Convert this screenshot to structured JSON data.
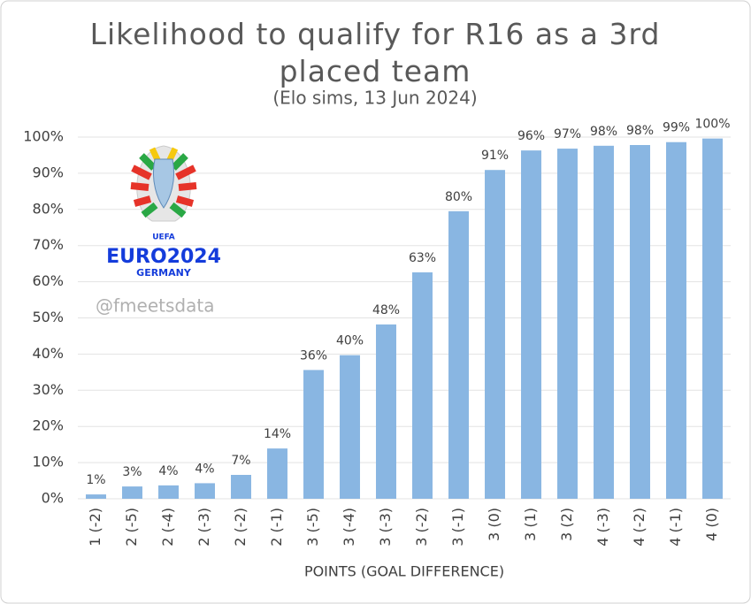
{
  "chart_data": {
    "type": "bar",
    "title": "Likelihood to qualify for R16 as a 3rd placed team",
    "subtitle": "(Elo sims, 13 Jun 2024)",
    "x_label": "POINTS (GOAL DIFFERENCE)",
    "watermark": "@fmeetsdata",
    "logo": {
      "top": "UEFA",
      "main": "EURO2024",
      "bottom": "GERMANY"
    },
    "categories": [
      "1 (-2)",
      "2 (-5)",
      "2 (-4)",
      "2 (-3)",
      "2 (-2)",
      "2 (-1)",
      "3 (-5)",
      "3 (-4)",
      "3 (-3)",
      "3 (-2)",
      "3 (-1)",
      "3 (0)",
      "3 (1)",
      "3 (2)",
      "4 (-3)",
      "4 (-2)",
      "4 (-1)",
      "4 (0)"
    ],
    "values": [
      1.2,
      3.4,
      3.7,
      4.3,
      6.6,
      13.9,
      35.6,
      39.7,
      48.2,
      62.6,
      79.5,
      90.9,
      96.3,
      96.8,
      97.6,
      97.8,
      98.6,
      99.6
    ],
    "value_labels": [
      "1%",
      "3%",
      "4%",
      "4%",
      "7%",
      "14%",
      "36%",
      "40%",
      "48%",
      "63%",
      "80%",
      "91%",
      "96%",
      "97%",
      "98%",
      "98%",
      "99%",
      "100%"
    ],
    "color": "#89b6e2",
    "ylim": [
      0,
      100
    ],
    "yticks": [
      {
        "value": 0,
        "label": "0%"
      },
      {
        "value": 10,
        "label": "10%"
      },
      {
        "value": 20,
        "label": "20%"
      },
      {
        "value": 30,
        "label": "30%"
      },
      {
        "value": 40,
        "label": "40%"
      },
      {
        "value": 50,
        "label": "50%"
      },
      {
        "value": 60,
        "label": "60%"
      },
      {
        "value": 70,
        "label": "70%"
      },
      {
        "value": 80,
        "label": "80%"
      },
      {
        "value": 90,
        "label": "90%"
      },
      {
        "value": 100,
        "label": "100%"
      }
    ],
    "grid": true
  }
}
